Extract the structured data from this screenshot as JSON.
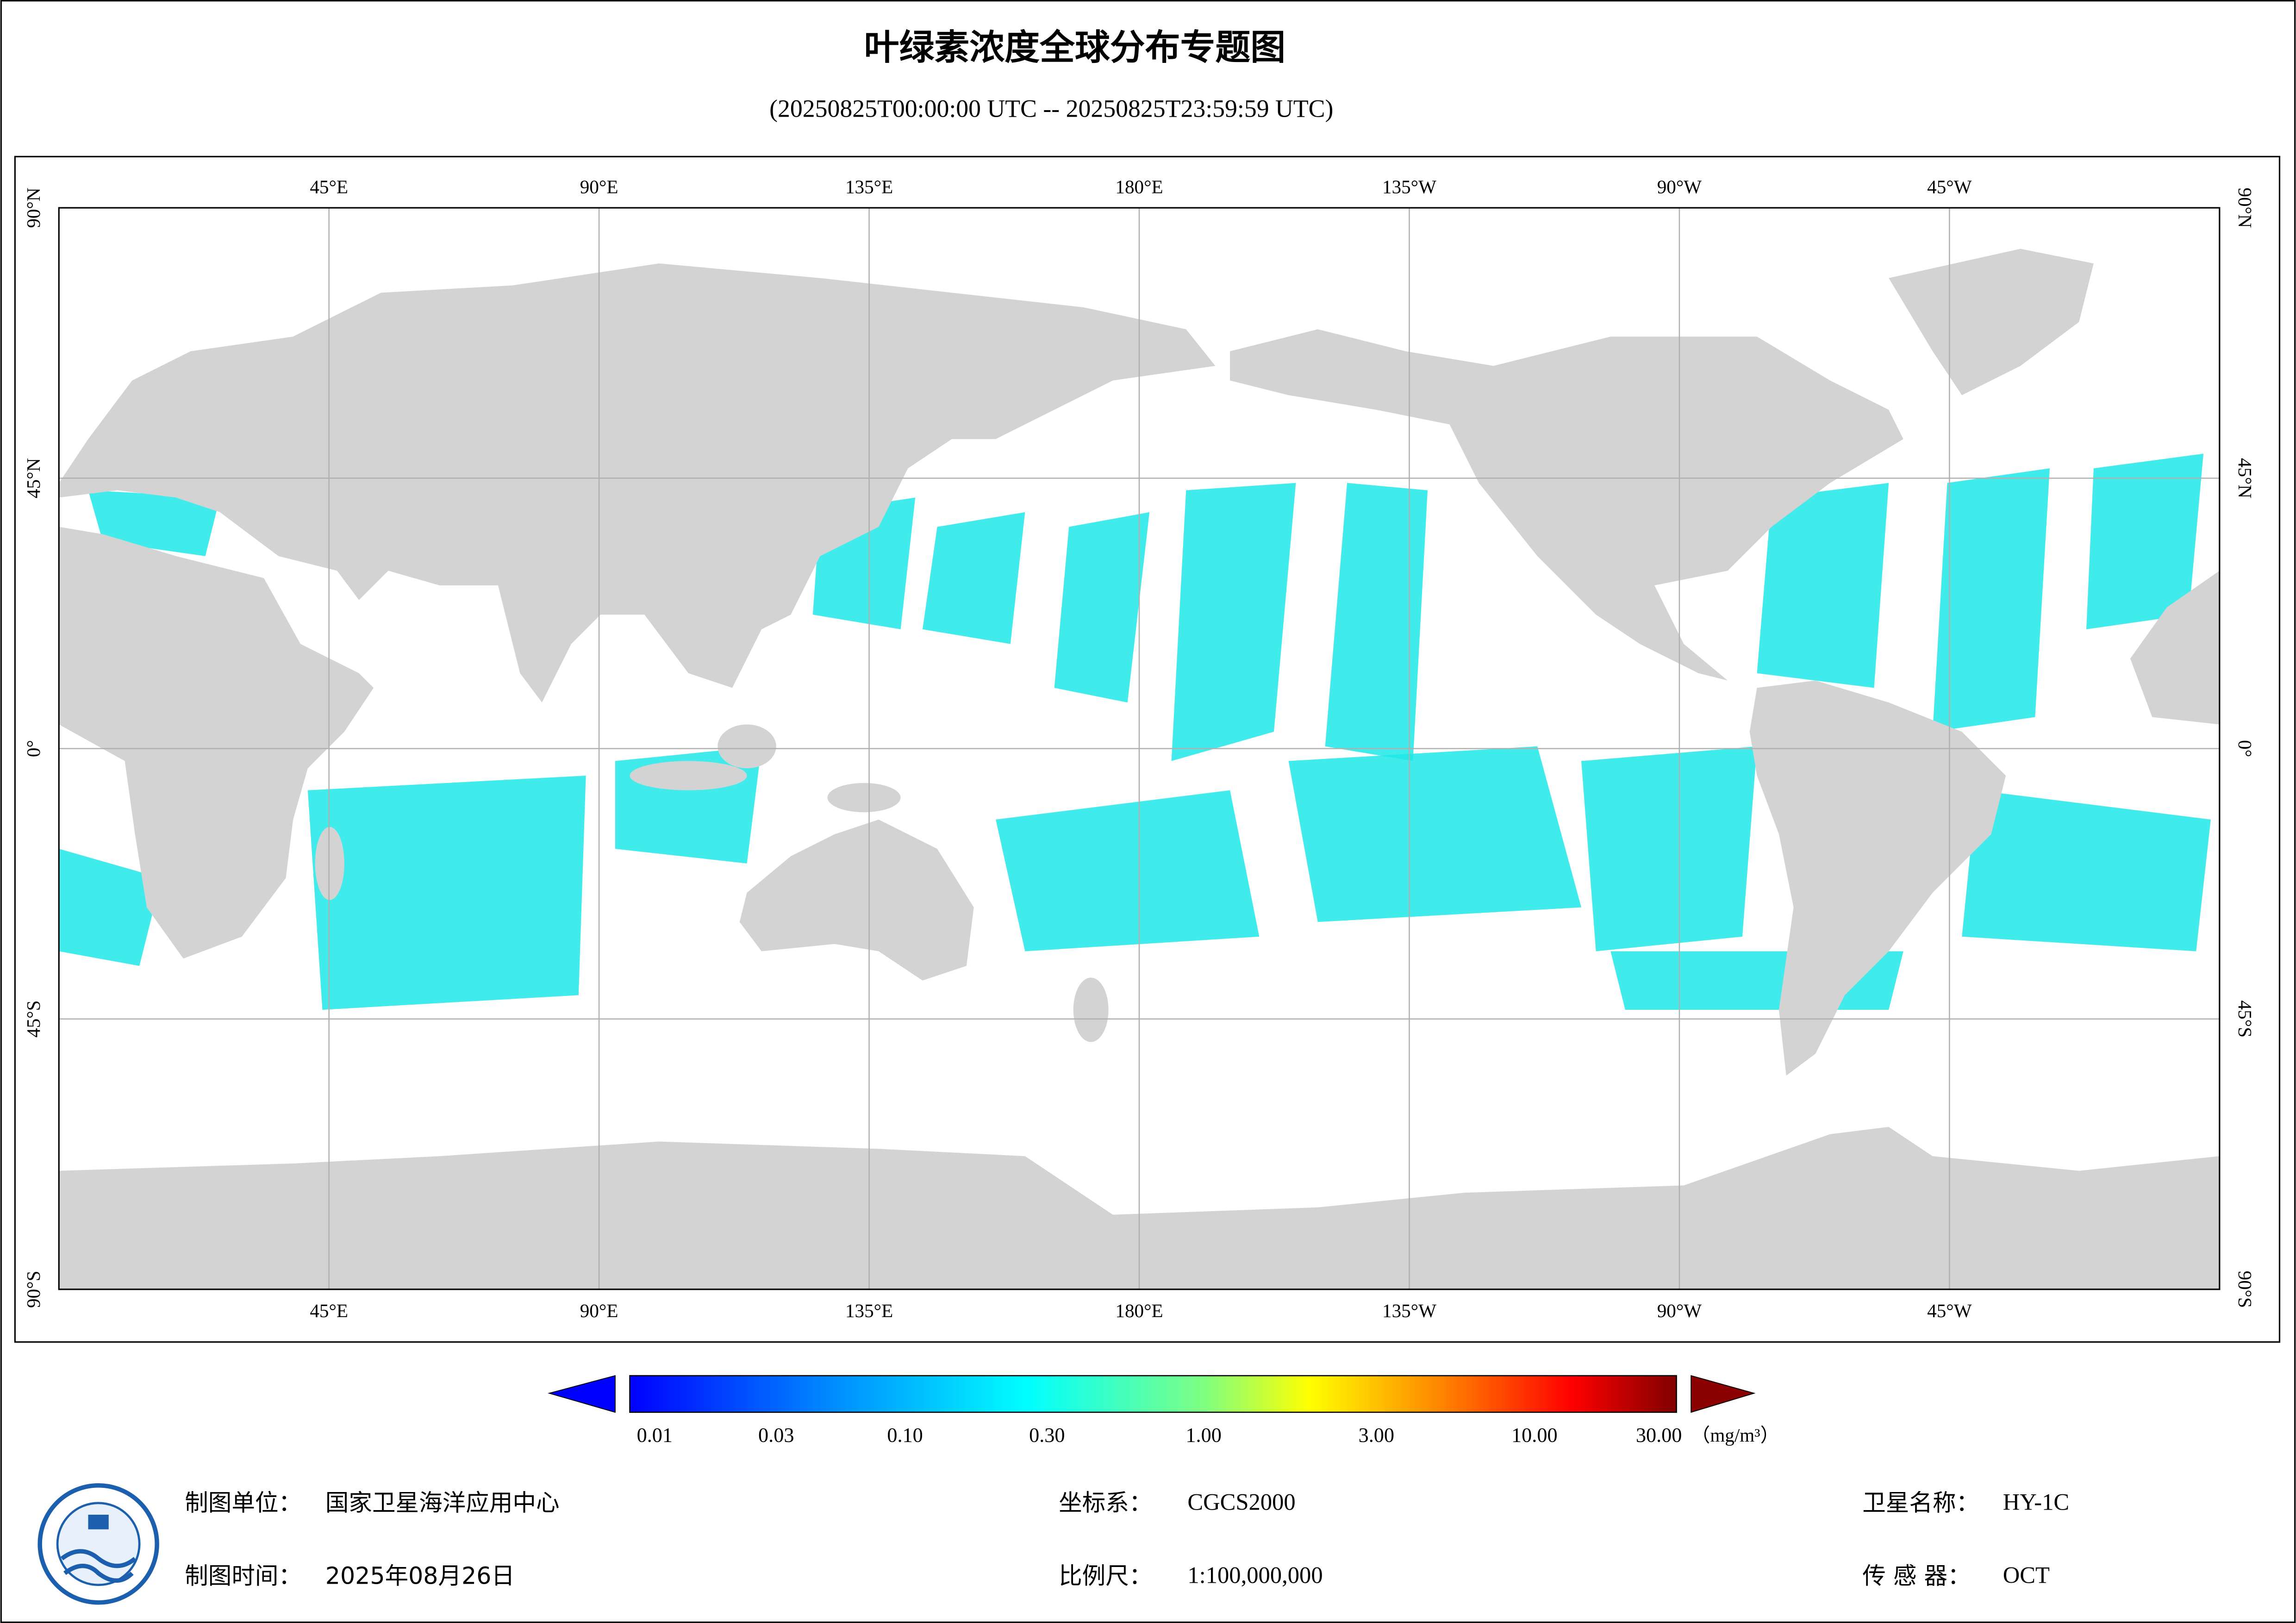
{
  "header": {
    "title": "叶绿素浓度全球分布专题图",
    "subtitle": "(20250825T00:00:00 UTC -- 20250825T23:59:59 UTC)"
  },
  "map": {
    "longitude_labels": [
      "45°E",
      "90°E",
      "135°E",
      "180°E",
      "135°W",
      "90°W",
      "45°W"
    ],
    "latitude_labels": [
      "90°N",
      "45°N",
      "0°",
      "45°S",
      "90°S"
    ]
  },
  "colorbar": {
    "labels": [
      "0.01",
      "0.03",
      "0.10",
      "0.30",
      "1.00",
      "3.00",
      "10.00",
      "30.00"
    ],
    "unit": "（mg/m³）"
  },
  "footer": {
    "items": [
      {
        "label": "制图单位：",
        "value": "国家卫星海洋应用中心"
      },
      {
        "label": "制图时间：",
        "value": "2025年08月26日"
      },
      {
        "label": "坐标系：",
        "value": "CGCS2000"
      },
      {
        "label": "比例尺：",
        "value": "1:100,000,000"
      },
      {
        "label": "卫星名称：",
        "value": "HY-1C"
      },
      {
        "label": "传 感 器：",
        "value": "OCT"
      }
    ]
  }
}
